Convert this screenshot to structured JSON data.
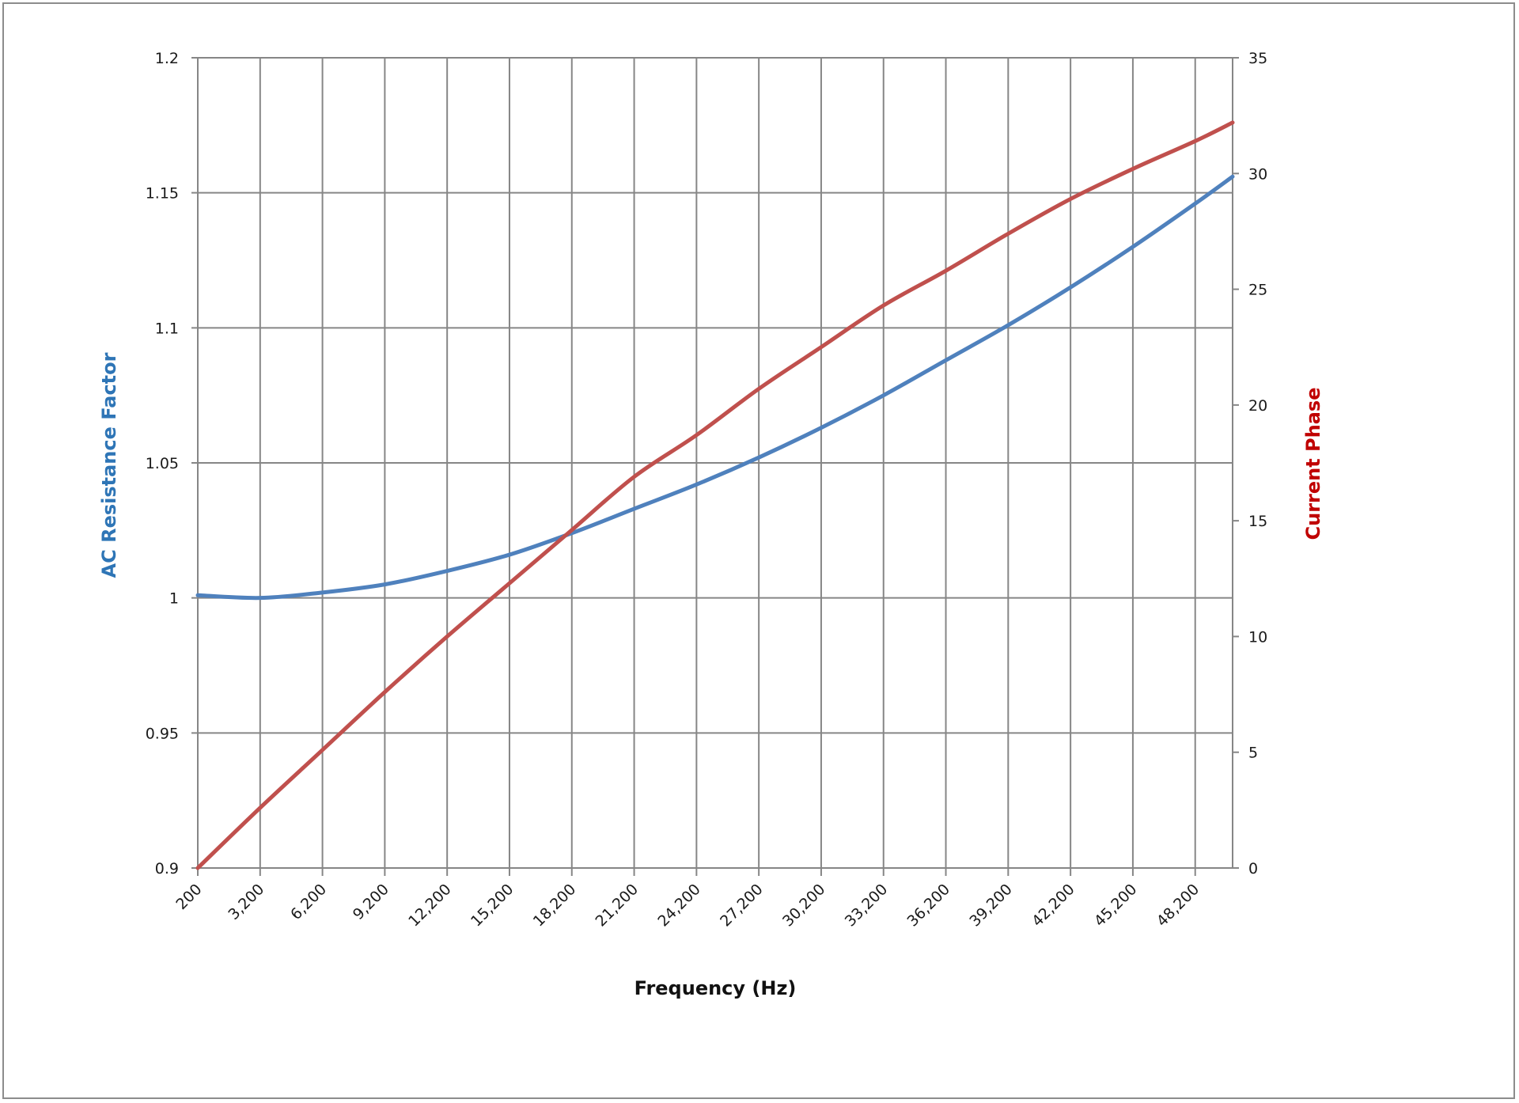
{
  "chart_data": {
    "type": "line",
    "title": "",
    "xlabel": "Frequency (Hz)",
    "ylabel": "AC Resistance Factor",
    "y2label": "Current Phase",
    "x_ticks": [
      "200",
      "3,200",
      "6,200",
      "9,200",
      "12,200",
      "15,200",
      "18,200",
      "21,200",
      "24,200",
      "27,200",
      "30,200",
      "33,200",
      "36,200",
      "39,200",
      "42,200",
      "45,200",
      "48,200"
    ],
    "y_ticks": [
      "0.9",
      "0.95",
      "1",
      "1.05",
      "1.1",
      "1.15",
      "1.2"
    ],
    "y2_ticks": [
      "0",
      "5",
      "10",
      "15",
      "20",
      "25",
      "30",
      "35"
    ],
    "xlim": [
      200,
      50000
    ],
    "ylim": [
      0.9,
      1.2
    ],
    "y2lim": [
      0,
      35
    ],
    "grid": true,
    "legend": "none",
    "x": [
      200,
      3200,
      6200,
      9200,
      12200,
      15200,
      18200,
      21200,
      24200,
      27200,
      30200,
      33200,
      36200,
      39200,
      42200,
      45200,
      48200,
      50000
    ],
    "series": [
      {
        "name": "AC Resistance Factor",
        "axis": "left",
        "color": "#4f81bd",
        "values": [
          1.001,
          1.0,
          1.002,
          1.005,
          1.01,
          1.016,
          1.024,
          1.033,
          1.042,
          1.052,
          1.063,
          1.075,
          1.088,
          1.101,
          1.115,
          1.13,
          1.146,
          1.156
        ]
      },
      {
        "name": "Current Phase",
        "axis": "right",
        "color": "#c0504d",
        "values": [
          0.0,
          2.6,
          5.1,
          7.6,
          10.0,
          12.3,
          14.6,
          16.9,
          18.7,
          20.7,
          22.5,
          24.3,
          25.8,
          27.4,
          28.9,
          30.2,
          31.4,
          32.2
        ]
      }
    ]
  },
  "colors": {
    "left_axis_title": "#2e75b6",
    "right_axis_title": "#c00000",
    "grid": "#868686"
  }
}
